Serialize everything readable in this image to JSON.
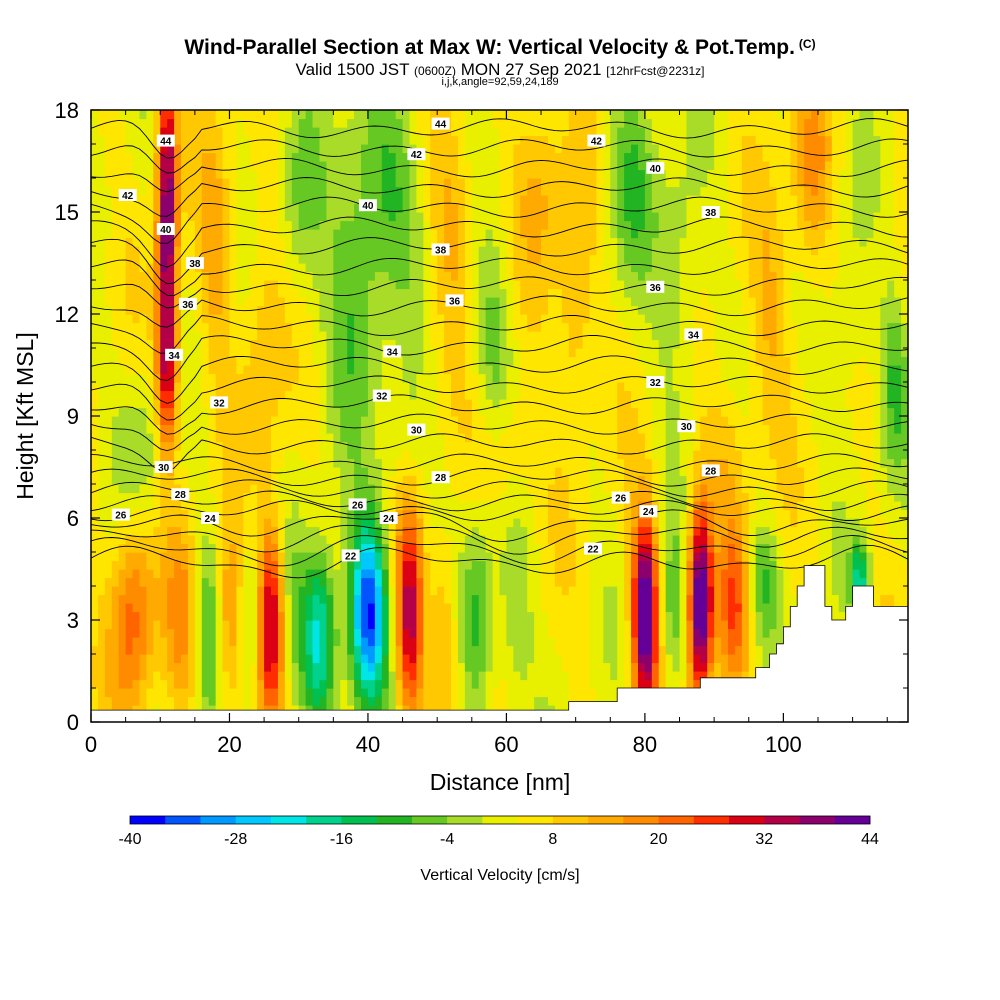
{
  "chart_data": {
    "type": "heatmap",
    "title": "Wind-Parallel Section at Max W: Vertical Velocity & Pot.Temp.",
    "title_mark": "(C)",
    "subtitle_parts": [
      "Valid 1500 JST ",
      "(0600Z)",
      " MON 27 Sep 2021 ",
      "[12hrFcst@2231z]"
    ],
    "subtitle2": "i,j,k,angle=92,59,24,189",
    "xlabel": "Distance [nm]",
    "ylabel": "Height [Kft MSL]",
    "xlim": [
      0,
      118
    ],
    "ylim": [
      0,
      18
    ],
    "x_ticks": [
      "0",
      "20",
      "40",
      "60",
      "80",
      "100"
    ],
    "y_ticks": [
      "0",
      "3",
      "6",
      "9",
      "12",
      "15",
      "18"
    ],
    "grid": false,
    "colorbar": {
      "label": "Vertical Velocity [cm/s]",
      "tick_labels": [
        "-40",
        "-28",
        "-16",
        "-4",
        "8",
        "20",
        "32",
        "44"
      ],
      "tick_values": [
        -40,
        -28,
        -16,
        -4,
        8,
        20,
        32,
        44
      ],
      "colors": [
        "#0000ff",
        "#0055ff",
        "#0099ff",
        "#00c8ff",
        "#00e5e5",
        "#00d28c",
        "#00c050",
        "#22b422",
        "#66c822",
        "#a8dc28",
        "#e8f000",
        "#ffe600",
        "#ffc800",
        "#ffaa00",
        "#ff8c00",
        "#ff6400",
        "#ff2d00",
        "#dc0014",
        "#b40046",
        "#8c006e",
        "#640096"
      ]
    },
    "terrain": [
      [
        0,
        0.35
      ],
      [
        68,
        0.35
      ],
      [
        69,
        0.6
      ],
      [
        75,
        0.6
      ],
      [
        76,
        1.0
      ],
      [
        87,
        1.0
      ],
      [
        88,
        1.3
      ],
      [
        94,
        1.3
      ],
      [
        96,
        1.6
      ],
      [
        98,
        2.0
      ],
      [
        99,
        2.3
      ],
      [
        100,
        2.8
      ],
      [
        101,
        3.4
      ],
      [
        102,
        4.0
      ],
      [
        103,
        4.6
      ],
      [
        105,
        4.6
      ],
      [
        106,
        3.4
      ],
      [
        107,
        3.0
      ],
      [
        108,
        3.0
      ],
      [
        109,
        3.4
      ],
      [
        110,
        4.0
      ],
      [
        112,
        4.0
      ],
      [
        113,
        3.4
      ],
      [
        118,
        3.4
      ]
    ],
    "velocity_centers": [
      {
        "x": 11,
        "y": 15,
        "sx": 1.0,
        "sy": 3.4,
        "value": 38
      },
      {
        "x": 11,
        "y": 10,
        "sx": 1.2,
        "sy": 1.8,
        "value": 20
      },
      {
        "x": 18,
        "y": 14,
        "sx": 1.6,
        "sy": 2.6,
        "value": 10
      },
      {
        "x": 6,
        "y": 3,
        "sx": 2.2,
        "sy": 2.2,
        "value": 18
      },
      {
        "x": 13,
        "y": 3,
        "sx": 1.6,
        "sy": 2.0,
        "value": 12
      },
      {
        "x": 17,
        "y": 2.5,
        "sx": 1.2,
        "sy": 2.0,
        "value": -12
      },
      {
        "x": 20,
        "y": 3,
        "sx": 1.5,
        "sy": 2.0,
        "value": 14
      },
      {
        "x": 23,
        "y": 3,
        "sx": 1.2,
        "sy": 2.0,
        "value": -10
      },
      {
        "x": 26,
        "y": 3,
        "sx": 1.4,
        "sy": 2.0,
        "value": 30
      },
      {
        "x": 29,
        "y": 3,
        "sx": 1.2,
        "sy": 2.0,
        "value": -6
      },
      {
        "x": 33,
        "y": 2.5,
        "sx": 1.8,
        "sy": 1.8,
        "value": -28
      },
      {
        "x": 40,
        "y": 3.3,
        "sx": 1.9,
        "sy": 1.9,
        "value": -40
      },
      {
        "x": 46,
        "y": 3.2,
        "sx": 1.4,
        "sy": 2.2,
        "value": 30
      },
      {
        "x": 51,
        "y": 3,
        "sx": 1.4,
        "sy": 2.0,
        "value": 10
      },
      {
        "x": 56,
        "y": 3,
        "sx": 1.6,
        "sy": 2.0,
        "value": -14
      },
      {
        "x": 61,
        "y": 3,
        "sx": 1.8,
        "sy": 2.2,
        "value": -8
      },
      {
        "x": 80,
        "y": 3.2,
        "sx": 1.3,
        "sy": 2.0,
        "value": 44
      },
      {
        "x": 84,
        "y": 3,
        "sx": 1.4,
        "sy": 1.8,
        "value": -10
      },
      {
        "x": 88,
        "y": 3.5,
        "sx": 1.2,
        "sy": 2.0,
        "value": 44
      },
      {
        "x": 93,
        "y": 3.5,
        "sx": 1.6,
        "sy": 1.8,
        "value": 18
      },
      {
        "x": 97,
        "y": 4.2,
        "sx": 1.6,
        "sy": 1.2,
        "value": -12
      },
      {
        "x": 111,
        "y": 4.2,
        "sx": 1.0,
        "sy": 0.8,
        "value": -22
      },
      {
        "x": 42,
        "y": 16,
        "sx": 4.5,
        "sy": 2.2,
        "value": -12
      },
      {
        "x": 38,
        "y": 12,
        "sx": 3.0,
        "sy": 2.6,
        "value": -10
      },
      {
        "x": 52,
        "y": 15,
        "sx": 2.5,
        "sy": 2.2,
        "value": 10
      },
      {
        "x": 25,
        "y": 11,
        "sx": 2.2,
        "sy": 3.0,
        "value": 8
      },
      {
        "x": 30,
        "y": 15,
        "sx": 2.2,
        "sy": 2.2,
        "value": -8
      },
      {
        "x": 65,
        "y": 16,
        "sx": 2.5,
        "sy": 2.2,
        "value": 8
      },
      {
        "x": 78,
        "y": 16,
        "sx": 2.5,
        "sy": 2.2,
        "value": -10
      },
      {
        "x": 70,
        "y": 12,
        "sx": 2.0,
        "sy": 2.5,
        "value": 10
      },
      {
        "x": 85,
        "y": 13,
        "sx": 2.4,
        "sy": 2.8,
        "value": -8
      },
      {
        "x": 98,
        "y": 12,
        "sx": 2.0,
        "sy": 2.4,
        "value": 8
      },
      {
        "x": 104,
        "y": 16,
        "sx": 2.0,
        "sy": 2.0,
        "value": 14
      },
      {
        "x": 110,
        "y": 12,
        "sx": 2.0,
        "sy": 2.5,
        "value": -6
      },
      {
        "x": 60,
        "y": 8,
        "sx": 3.0,
        "sy": 1.5,
        "value": 8
      },
      {
        "x": 8,
        "y": 8,
        "sx": 2.5,
        "sy": 1.6,
        "value": -8
      },
      {
        "x": 45,
        "y": 8,
        "sx": 2.5,
        "sy": 1.5,
        "value": -6
      },
      {
        "x": 92,
        "y": 8,
        "sx": 2.5,
        "sy": 1.5,
        "value": 8
      },
      {
        "x": 58,
        "y": 11,
        "sx": 2.0,
        "sy": 2.0,
        "value": -10
      },
      {
        "x": 116,
        "y": 10,
        "sx": 1.5,
        "sy": 2.0,
        "value": -10
      }
    ],
    "contour_labels": [
      {
        "text": "44",
        "x": 10.8,
        "y": 17.1
      },
      {
        "text": "42",
        "x": 5.3,
        "y": 15.5
      },
      {
        "text": "40",
        "x": 10.8,
        "y": 14.5
      },
      {
        "text": "38",
        "x": 15,
        "y": 13.5
      },
      {
        "text": "36",
        "x": 14,
        "y": 12.3
      },
      {
        "text": "34",
        "x": 12,
        "y": 10.8
      },
      {
        "text": "32",
        "x": 18.5,
        "y": 9.4
      },
      {
        "text": "30",
        "x": 10.5,
        "y": 7.5
      },
      {
        "text": "28",
        "x": 12.9,
        "y": 6.7
      },
      {
        "text": "26",
        "x": 4.3,
        "y": 6.1
      },
      {
        "text": "24",
        "x": 17.2,
        "y": 6.0
      },
      {
        "text": "44",
        "x": 50.5,
        "y": 17.6
      },
      {
        "text": "42",
        "x": 47,
        "y": 16.7
      },
      {
        "text": "40",
        "x": 40,
        "y": 15.2
      },
      {
        "text": "38",
        "x": 50.5,
        "y": 13.9
      },
      {
        "text": "36",
        "x": 52.5,
        "y": 12.4
      },
      {
        "text": "34",
        "x": 43.5,
        "y": 10.9
      },
      {
        "text": "32",
        "x": 42,
        "y": 9.6
      },
      {
        "text": "30",
        "x": 47,
        "y": 8.6
      },
      {
        "text": "28",
        "x": 50.5,
        "y": 7.2
      },
      {
        "text": "26",
        "x": 38.5,
        "y": 6.4
      },
      {
        "text": "24",
        "x": 43,
        "y": 6.0
      },
      {
        "text": "22",
        "x": 37.5,
        "y": 4.9
      },
      {
        "text": "42",
        "x": 73,
        "y": 17.1
      },
      {
        "text": "40",
        "x": 81.5,
        "y": 16.3
      },
      {
        "text": "38",
        "x": 89.5,
        "y": 15.0
      },
      {
        "text": "36",
        "x": 81.5,
        "y": 12.8
      },
      {
        "text": "34",
        "x": 87,
        "y": 11.4
      },
      {
        "text": "32",
        "x": 81.5,
        "y": 10.0
      },
      {
        "text": "30",
        "x": 86,
        "y": 8.7
      },
      {
        "text": "28",
        "x": 89.5,
        "y": 7.4
      },
      {
        "text": "26",
        "x": 76.5,
        "y": 6.6
      },
      {
        "text": "24",
        "x": 80.5,
        "y": 6.2
      },
      {
        "text": "22",
        "x": 72.5,
        "y": 5.1
      }
    ]
  }
}
